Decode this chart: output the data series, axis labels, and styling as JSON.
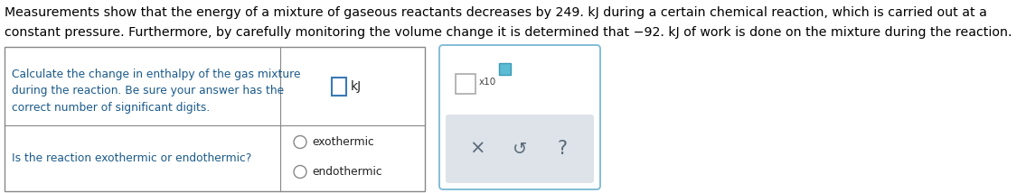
{
  "line1": "Measurements show that the energy of a mixture of gaseous reactants decreases by 249. kJ during a certain chemical reaction, which is carried out at a",
  "line2": "constant pressure. Furthermore, by carefully monitoring the volume change it is determined that −92. kJ of work is done on the mixture during the reaction.",
  "paragraph_color": "#000000",
  "paragraph_fontsize": 10.2,
  "row1_label": "Calculate the change in enthalpy of the gas mixture\nduring the reaction. Be sure your answer has the\ncorrect number of significant digits.",
  "row1_label_color": "#1a5a8a",
  "row2_label": "Is the reaction exothermic or endothermic?",
  "row2_label_color": "#1a5a8a",
  "row2_options": [
    "exothermic",
    "endothermic"
  ],
  "table_border_color": "#888888",
  "background_color": "#ffffff",
  "input_box_color": "#3a7ab5",
  "widget_border_color": "#7ab8d4",
  "widget_bg": "#ffffff",
  "gray_panel_color": "#dde3e8",
  "symbol_color": "#5a6a7a",
  "kJ_color": "#222222",
  "radio_color": "#888888",
  "option_color": "#222222"
}
